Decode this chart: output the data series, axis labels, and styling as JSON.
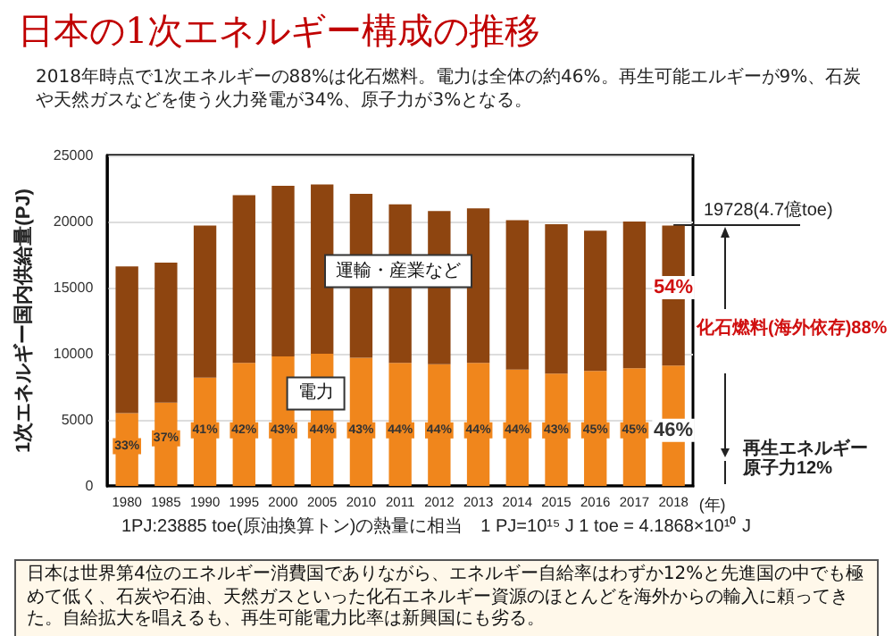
{
  "chart_data": {
    "type": "bar",
    "title": "日本の1次エネルギー構成の推移",
    "subtitle": "2018年時点で1次エネルギーの88%は化石燃料。電力は全体の約46%。再生可能エルギーが9%、石炭や天然ガスなどを使う火力発電が34%、原子力が3%となる。",
    "xlabel": "(年)",
    "ylabel": "1次エネルギー国内供給量(PJ)",
    "categories": [
      "1980",
      "1985",
      "1990",
      "1995",
      "2000",
      "2005",
      "2010",
      "2011",
      "2012",
      "2013",
      "2014",
      "2015",
      "2016",
      "2017",
      "2018"
    ],
    "stacked": true,
    "series": [
      {
        "name": "電力",
        "color": "#f0861c",
        "values": [
          5500,
          6300,
          8200,
          9300,
          9800,
          10000,
          9700,
          9300,
          9200,
          9300,
          8800,
          8500,
          8700,
          8900,
          9100
        ]
      },
      {
        "name": "運輸・産業など",
        "color": "#8e4510",
        "values": [
          11100,
          10600,
          11500,
          12700,
          12900,
          12800,
          12400,
          12000,
          11600,
          11700,
          11300,
          11300,
          10600,
          11100,
          10600
        ]
      }
    ],
    "ylim": [
      0,
      25000
    ],
    "yticks": [
      0,
      5000,
      10000,
      15000,
      20000,
      25000
    ],
    "grid": "y",
    "annotations": [
      {
        "text": "19728(4.7億toe)",
        "x": "2018",
        "y": 19728
      },
      "化石燃料(海外依存)88%",
      "再生エネルギー原子力12%",
      "1PJ:23885 toe(原油換算トン)の熱量に相当　1 PJ=10¹⁵ J 1 toe = 4.1868×10¹⁰ J",
      "日本は世界第4位のエネルギー消費国でありながら、エネルギー自給率はわずか12%と先進国の中でも極めて低く、石炭や石油、天然ガスといった化石エネルギー資源のほとんどを海外からの輸入に頼ってきた。自給拡大を唱えるも、再生可能電力比率は新興国にも劣る。",
      {
        "text": "33%",
        "x": "1980",
        "y": 3000
      },
      {
        "text": "37%",
        "x": "1985",
        "y": 3600
      },
      {
        "text": "41%",
        "x": "1990",
        "y": 4200
      },
      {
        "text": "42%",
        "x": "1995",
        "y": 4200
      },
      {
        "text": "43%",
        "x": "2000",
        "y": 4200
      },
      {
        "text": "44%",
        "x": "2005",
        "y": 4200
      },
      {
        "text": "43%",
        "x": "2010",
        "y": 4200
      },
      {
        "text": "44%",
        "x": "2011",
        "y": 4200
      },
      {
        "text": "44%",
        "x": "2012",
        "y": 4200
      },
      {
        "text": "44%",
        "x": "2013",
        "y": 4200
      },
      {
        "text": "44%",
        "x": "2014",
        "y": 4200
      },
      {
        "text": "43%",
        "x": "2015",
        "y": 4200
      },
      {
        "text": "45%",
        "x": "2016",
        "y": 4200
      },
      {
        "text": "45%",
        "x": "2017",
        "y": 4200
      },
      {
        "text": "46%",
        "x": "2018",
        "y": 4200
      },
      {
        "text": "54%",
        "x": "2018",
        "y": 15000
      }
    ]
  }
}
